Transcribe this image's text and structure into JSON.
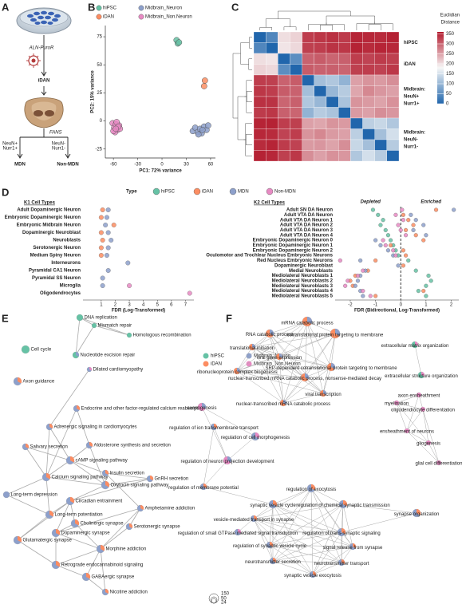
{
  "panel_labels": [
    "A",
    "B",
    "C",
    "D",
    "E",
    "F"
  ],
  "panel_a": {
    "vector": "ALN-PuroR",
    "product": "iDAN",
    "method": "FANS",
    "left_gate": [
      "NeuN+",
      "Nurr1+"
    ],
    "right_gate": [
      "NeuN-",
      "Nurr1-"
    ],
    "left_population": "MDN",
    "right_population": "Non-MDN"
  },
  "chart_data": [
    {
      "type": "scatter",
      "xlabel": "PC1: 72% variance",
      "ylabel": "PC2: 15% variance",
      "xlim": [
        -70,
        66
      ],
      "ylim": [
        -33,
        85
      ],
      "xticks": [
        -60,
        -30,
        0,
        30,
        60
      ],
      "yticks": [
        -25,
        0,
        25,
        50,
        75
      ],
      "series": [
        {
          "name": "hiPSC",
          "color": "#66c2a5",
          "x": [
            18,
            19.5,
            21
          ],
          "values": [
            72,
            69,
            70
          ]
        },
        {
          "name": "iDAN",
          "color": "#fc8d62",
          "x": [
            53,
            52
          ],
          "values": [
            36,
            31
          ]
        },
        {
          "name": "Midbrain_Neuron",
          "color": "#8da0cb",
          "x": [
            38,
            41,
            44,
            47,
            49,
            52,
            55,
            57,
            50,
            45
          ],
          "values": [
            -9,
            -6,
            -10,
            -7,
            -11,
            -5,
            -8,
            -4,
            -8,
            -12
          ]
        },
        {
          "name": "Midbrain_Non.Neuron",
          "color": "#e78ac3",
          "x": [
            -61,
            -59,
            -57,
            -55,
            -53,
            -52,
            -58,
            -56,
            -54,
            -60,
            -57
          ],
          "values": [
            -2,
            -6,
            -3,
            -8,
            -4,
            -7,
            -10,
            -1,
            -5,
            -9,
            -7
          ]
        }
      ]
    },
    {
      "type": "heatmap",
      "matrix": [
        [
          0,
          40,
          200,
          210,
          330,
          335,
          340,
          332,
          350,
          348,
          345,
          352
        ],
        [
          40,
          0,
          195,
          205,
          328,
          330,
          338,
          335,
          352,
          345,
          350,
          348
        ],
        [
          200,
          195,
          0,
          50,
          300,
          305,
          298,
          302,
          330,
          325,
          332,
          328
        ],
        [
          210,
          205,
          50,
          0,
          305,
          300,
          302,
          298,
          328,
          330,
          326,
          334
        ],
        [
          330,
          328,
          300,
          305,
          0,
          110,
          120,
          95,
          250,
          260,
          255,
          265
        ],
        [
          335,
          330,
          305,
          300,
          110,
          0,
          100,
          125,
          245,
          270,
          258,
          250
        ],
        [
          340,
          338,
          298,
          302,
          120,
          100,
          0,
          115,
          260,
          255,
          248,
          262
        ],
        [
          332,
          335,
          302,
          298,
          95,
          125,
          115,
          0,
          255,
          250,
          265,
          258
        ],
        [
          350,
          352,
          330,
          328,
          250,
          245,
          260,
          255,
          0,
          130,
          140,
          120
        ],
        [
          348,
          345,
          325,
          330,
          260,
          270,
          255,
          250,
          130,
          0,
          110,
          150
        ],
        [
          345,
          350,
          332,
          326,
          255,
          258,
          248,
          265,
          140,
          110,
          0,
          125
        ],
        [
          352,
          348,
          328,
          334,
          265,
          250,
          262,
          258,
          120,
          150,
          125,
          0
        ]
      ],
      "clim": [
        0,
        360
      ],
      "colors": [
        "#2166ac",
        "#f7f7f7",
        "#b2182b"
      ],
      "colorbar_title": [
        "Euclidian",
        "Distance"
      ],
      "cticks": [
        0,
        50,
        100,
        150,
        200,
        250,
        300,
        350
      ],
      "row_groups": [
        [
          "hiPSC"
        ],
        [
          "iDAN"
        ],
        [
          "Midbrain:",
          "NeuN+",
          "Nurr1+"
        ],
        [
          "Midbrain:",
          "NeuN-",
          "Nurr1-"
        ]
      ]
    },
    {
      "type": "dot",
      "legend_title": "Type",
      "series": [
        {
          "name": "hiPSC",
          "color": "#66c2a5"
        },
        {
          "name": "iDAN",
          "color": "#fc8d62"
        },
        {
          "name": "MDN",
          "color": "#8da0cb"
        },
        {
          "name": "Non-MDN",
          "color": "#e78ac3"
        }
      ],
      "facets": [
        {
          "title": "K1 Cell Types",
          "categories": [
            "Adult Dopaminergic Neuron",
            "Embryonic Dopaminergic Neuron",
            "Embryonic Midbrain Neuron",
            "Dopaminergic Neuroblast",
            "Neuroblasts",
            "Serotonergic Neuron",
            "Medium Spiny Neuron",
            "Interneurons",
            "Pyramidal CA1 Neuron",
            "Pyramidal SS Neuron",
            "Microglia",
            "Oligodendrocytes"
          ],
          "values": [
            [
              null,
              null,
              null,
              null,
              null,
              null,
              null,
              null,
              null,
              null,
              null,
              null
            ],
            [
              1.1,
              1.0,
              1.9,
              1.0,
              1.1,
              1.0,
              1.0,
              null,
              null,
              null,
              null,
              null
            ],
            [
              1.5,
              1.4,
              1.3,
              1.5,
              1.7,
              1.5,
              1.4,
              2.9,
              1.5,
              1.1,
              1.1,
              null
            ],
            [
              null,
              null,
              null,
              null,
              null,
              null,
              null,
              null,
              null,
              null,
              3.0,
              7.3
            ]
          ],
          "xlabel": "FDR (Log-Transformed)",
          "xlim": [
            -0.3,
            7.6
          ],
          "xticks": [
            1,
            2,
            3,
            4,
            5,
            6,
            7
          ]
        },
        {
          "title": "K2 Cell Types",
          "annotations": [
            "Depleted",
            "Enriched"
          ],
          "categories": [
            "Adult SN DA Neuron",
            "Adult VTA DA Neuron",
            "Adult VTA DA Neuron 1",
            "Adult VTA DA Neuron 2",
            "Adult VTA DA Neuron 3",
            "Adult VTA DA Neuron 4",
            "Embryonic Dopaminergic Neuron 0",
            "Embryonic Dopaminergic Neuron 1",
            "Embryonic Dopaminergic Neuron 2",
            "Oculomotor and Trochlear Nucleus Embryonic Neurons",
            "Red Nucleus Embryonic Neurons",
            "Dopaminergic Neuroblast",
            "Medial Neuroblasts",
            "Mediolateral Neuroblasts 1",
            "Mediolateral Neuroblasts 2",
            "Mediolateral Neuroblasts 3",
            "Mediolateral Neuroblasts 4",
            "Mediolateral Neuroblasts 5"
          ],
          "values": [
            [
              -1.1,
              -0.9,
              -0.7,
              -0.8,
              -0.6,
              -0.5,
              -0.4,
              -0.3,
              -0.2,
              -0.1,
              0.3,
              null,
              0.6,
              1.1,
              1.2,
              1.0,
              0.7,
              1.0
            ],
            [
              1.4,
              0.1,
              0.3,
              0.5,
              0.2,
              0.6,
              0.9,
              -0.4,
              0.1,
              0.2,
              -1.0,
              0.1,
              -1.3,
              -1.8,
              -2.0,
              -1.9,
              0.9,
              -1.0
            ],
            [
              2.1,
              0.4,
              0.6,
              0.9,
              0.5,
              1.0,
              -1.0,
              -0.8,
              -0.5,
              -0.3,
              -1.6,
              -0.1,
              -1.4,
              -1.6,
              -1.7,
              -1.8,
              -1.6,
              -1.5
            ],
            [
              0.05,
              -0.2,
              0.1,
              -0.1,
              0.0,
              0.2,
              -0.7,
              -0.6,
              -0.3,
              -0.2,
              -2.4,
              null,
              -1.5,
              -1.7,
              -2.1,
              -2.2,
              -1.5,
              -1.2
            ]
          ],
          "xlabel": "FDR (Bidirectional, Log-Transformed)",
          "xlim": [
            -2.6,
            2.3
          ],
          "xticks": [
            -2,
            -1,
            0,
            1,
            2
          ],
          "vline": 0
        }
      ]
    }
  ],
  "network_legend": [
    {
      "name": "hiPSC",
      "color": "#66c2a5"
    },
    {
      "name": "iDAN",
      "color": "#fc8d62"
    },
    {
      "name": "Midbrain_Neuron",
      "color": "#8da0cb"
    },
    {
      "name": "Midbrain_Non.Neuron",
      "color": "#e78ac3"
    }
  ],
  "panel_e": {
    "nodes": [
      "DNA replication",
      "Mismatch repair",
      "Homologous recombination",
      "Cell cycle",
      "Nucleotide excision repair",
      "Dilated cardiomyopathy",
      "Axon guidance",
      "Endocrine and other factor-regulated calcium reabsorption",
      "Adrenergic signaling in cardiomyocytes",
      "Salivary secretion",
      "Aldosterone synthesis and secretion",
      "cAMP signaling pathway",
      "Calcium signaling pathway",
      "Insulin secretion",
      "GnRH secretion",
      "Oxytocin signaling pathway",
      "Long-term depression",
      "Circadian entrainment",
      "Amphetamine addiction",
      "Long-term potentiation",
      "Cholinergic synapse",
      "Serotonergic synapse",
      "Dopaminergic synapse",
      "Glutamatergic synapse",
      "Morphine addiction",
      "Retrograde endocannabinoid signaling",
      "GABAergic synapse",
      "Nicotine addiction"
    ]
  },
  "panel_f": {
    "nodes": [
      "mRNA catabolic process",
      "RNA catabolic process",
      "cotranslational protein targeting to membrane",
      "translational initiation",
      "viral gene expression",
      "extracellular matrix organization",
      "SRP-dependent cotranslational protein targeting to membrane",
      "ribonucleoprotein complex biogenesis",
      "nuclear-transcribed mRNA catabolic process, nonsense-mediated decay",
      "extracellular structure organization",
      "viral transcription",
      "axon ensheathment",
      "nuclear-transcribed mRNA catabolic process",
      "oligodendrocyte differentiation",
      "axonogenesis",
      "myelination",
      "regulation of ion transmembrane transport",
      "ensheathment of neurons",
      "regulation of cell morphogenesis",
      "gliogenesis",
      "glial cell differentiation",
      "regulation of neuron projection development",
      "regulation of membrane potential",
      "regulation of exocytosis",
      "synaptic vesicle cycle",
      "regulation of chemical synaptic transmission",
      "synapse organization",
      "vesicle-mediated transport in synapse",
      "regulation of small GTPase mediated signal transduction",
      "regulation of trans-synaptic signaling",
      "regulation of synaptic vesicle cycle",
      "signal release from synapse",
      "neurotransmitter secretion",
      "neurotransmitter transport",
      "synaptic vesicle exocytosis"
    ],
    "size_legend": [
      150,
      50,
      24
    ]
  }
}
